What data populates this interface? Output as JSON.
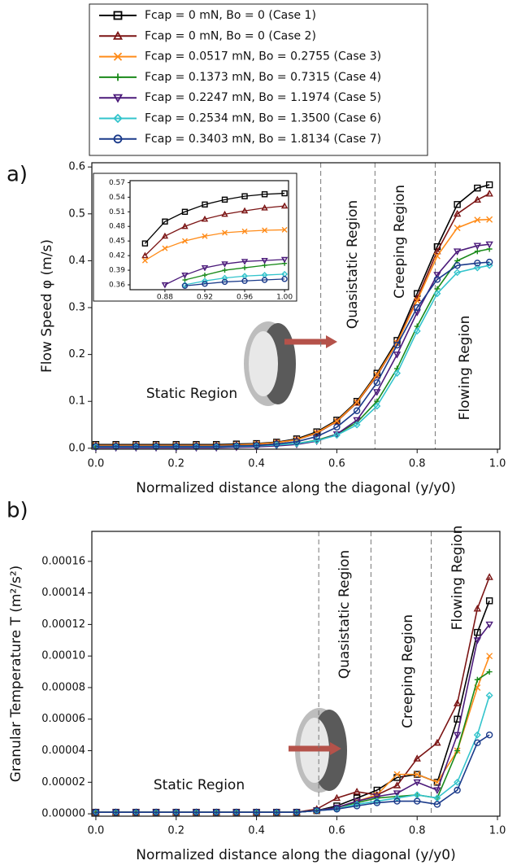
{
  "chart_data": [
    {
      "type": "line",
      "panel_label": "a)",
      "xlabel": "Normalized distance along the diagonal (y/y0)",
      "ylabel": "Flow Speed φ (m/s)",
      "xlim": [
        -0.01,
        1.006
      ],
      "ylim": [
        -0.002,
        0.609
      ],
      "xticks": [
        {
          "value": 0,
          "label": "0.0"
        },
        0.2,
        0.4,
        0.6,
        0.8,
        {
          "value": 1,
          "label": "1.0"
        }
      ],
      "yticks": [
        {
          "value": 0,
          "label": "0.0"
        },
        0.1,
        0.2,
        0.3,
        0.4,
        0.5,
        0.6
      ],
      "vlines": [
        0.56,
        0.695,
        0.845
      ],
      "annotations": [
        "Quasistatic Region",
        "Creeping Region",
        "Flowing Region",
        "Static Region"
      ],
      "x": [
        0,
        0.05,
        0.1,
        0.15,
        0.2,
        0.25,
        0.3,
        0.35,
        0.4,
        0.45,
        0.5,
        0.55,
        0.6,
        0.65,
        0.7,
        0.75,
        0.8,
        0.85,
        0.9,
        0.95,
        0.98
      ],
      "series": [
        {
          "name": "Fcap = 0 mN, Bo = 0  (Case 1)",
          "color": "#000000",
          "marker": "square",
          "values": [
            0.008,
            0.008,
            0.008,
            0.008,
            0.008,
            0.008,
            0.008,
            0.009,
            0.01,
            0.013,
            0.02,
            0.035,
            0.06,
            0.1,
            0.16,
            0.23,
            0.33,
            0.43,
            0.52,
            0.555,
            0.562
          ]
        },
        {
          "name": "Fcap = 0 mN, Bo = 0  (Case 2)",
          "color": "#7b1414",
          "marker": "triangle",
          "values": [
            0.006,
            0.006,
            0.006,
            0.006,
            0.006,
            0.006,
            0.006,
            0.007,
            0.008,
            0.012,
            0.018,
            0.032,
            0.057,
            0.097,
            0.155,
            0.225,
            0.32,
            0.42,
            0.5,
            0.53,
            0.543
          ]
        },
        {
          "name": "Fcap = 0.0517 mN, Bo = 0.2755  (Case 3)",
          "color": "#ff8c1a",
          "marker": "x",
          "values": [
            0.006,
            0.006,
            0.006,
            0.006,
            0.006,
            0.006,
            0.006,
            0.007,
            0.009,
            0.012,
            0.018,
            0.033,
            0.058,
            0.098,
            0.157,
            0.225,
            0.315,
            0.41,
            0.47,
            0.487,
            0.488
          ]
        },
        {
          "name": "Fcap = 0.1373 mN, Bo = 0.7315 (Case 4)",
          "color": "#1a8a1a",
          "marker": "plus",
          "values": [
            0.003,
            0.003,
            0.003,
            0.003,
            0.003,
            0.003,
            0.003,
            0.004,
            0.005,
            0.007,
            0.01,
            0.017,
            0.03,
            0.055,
            0.1,
            0.17,
            0.26,
            0.34,
            0.4,
            0.42,
            0.425
          ]
        },
        {
          "name": "Fcap = 0.2247 mN, Bo = 1.1974 (Case 5)",
          "color": "#4b1a7a",
          "marker": "tri-down",
          "values": [
            0.001,
            0.001,
            0.001,
            0.001,
            0.001,
            0.001,
            0.001,
            0.002,
            0.003,
            0.005,
            0.008,
            0.015,
            0.03,
            0.06,
            0.12,
            0.2,
            0.29,
            0.37,
            0.42,
            0.432,
            0.435
          ]
        },
        {
          "name": "Fcap = 0.2534 mN, Bo = 1.3500 (Case 6)",
          "color": "#33c4cc",
          "marker": "diamond",
          "values": [
            0.003,
            0.003,
            0.003,
            0.003,
            0.003,
            0.003,
            0.003,
            0.004,
            0.005,
            0.007,
            0.01,
            0.016,
            0.028,
            0.05,
            0.09,
            0.16,
            0.25,
            0.33,
            0.375,
            0.385,
            0.39
          ]
        },
        {
          "name": "Fcap = 0.3403 mN, Bo = 1.8134 (Case 7)",
          "color": "#1a3a8a",
          "marker": "circle",
          "values": [
            0.004,
            0.004,
            0.004,
            0.004,
            0.004,
            0.004,
            0.004,
            0.005,
            0.006,
            0.009,
            0.014,
            0.025,
            0.045,
            0.08,
            0.14,
            0.22,
            0.3,
            0.36,
            0.39,
            0.395,
            0.397
          ]
        }
      ]
    },
    {
      "type": "line",
      "xlim": [
        0.845,
        1.004
      ],
      "ylim": [
        0.35,
        0.574
      ],
      "xticks": [
        0.88,
        0.92,
        0.96,
        {
          "value": 1,
          "label": "1.00"
        }
      ],
      "yticks": [
        0.36,
        0.39,
        0.42,
        0.45,
        0.48,
        0.51,
        0.54,
        0.57
      ],
      "x": [
        0.86,
        0.88,
        0.9,
        0.92,
        0.94,
        0.96,
        0.98,
        1.0
      ],
      "series": [
        {
          "color": "#000000",
          "marker": "square",
          "values": [
            0.445,
            0.49,
            0.51,
            0.525,
            0.535,
            0.542,
            0.546,
            0.548
          ]
        },
        {
          "color": "#7b1414",
          "marker": "triangle",
          "values": [
            0.42,
            0.46,
            0.48,
            0.495,
            0.505,
            0.512,
            0.518,
            0.522
          ]
        },
        {
          "color": "#ff8c1a",
          "marker": "x",
          "values": [
            0.41,
            0.435,
            0.45,
            0.46,
            0.467,
            0.47,
            0.472,
            0.473
          ]
        },
        {
          "color": "#1a8a1a",
          "marker": "plus",
          "values": [
            null,
            null,
            0.37,
            0.38,
            0.39,
            0.395,
            0.4,
            0.404
          ]
        },
        {
          "color": "#4b1a7a",
          "marker": "tri-down",
          "values": [
            null,
            0.36,
            0.38,
            0.395,
            0.403,
            0.408,
            0.41,
            0.412
          ]
        },
        {
          "color": "#33c4cc",
          "marker": "diamond",
          "values": [
            null,
            null,
            0.36,
            0.368,
            0.374,
            0.378,
            0.38,
            0.382
          ]
        },
        {
          "color": "#1a3a8a",
          "marker": "circle",
          "values": [
            null,
            null,
            0.358,
            0.362,
            0.366,
            0.368,
            0.37,
            0.372
          ]
        }
      ]
    },
    {
      "type": "line",
      "panel_label": "b)",
      "xlabel": "Normalized distance along the diagonal (y/y0)",
      "ylabel": "Granular Temperature T (m²/s²)",
      "xlim": [
        -0.01,
        1.006
      ],
      "ylim": [
        -1.5e-06,
        0.000179
      ],
      "xticks": [
        {
          "value": 0,
          "label": "0.0"
        },
        0.2,
        0.4,
        0.6,
        0.8,
        {
          "value": 1,
          "label": "1.0"
        }
      ],
      "yticks": [
        {
          "value": 0,
          "label": "0.00000"
        },
        {
          "value": 2e-05,
          "label": "0.00002"
        },
        {
          "value": 4e-05,
          "label": "0.00004"
        },
        {
          "value": 6e-05,
          "label": "0.00006"
        },
        {
          "value": 8e-05,
          "label": "0.00008"
        },
        {
          "value": 0.0001,
          "label": "0.00010"
        },
        {
          "value": 0.00012,
          "label": "0.00012"
        },
        {
          "value": 0.00014,
          "label": "0.00014"
        },
        {
          "value": 0.00016,
          "label": "0.00016"
        }
      ],
      "vlines": [
        0.555,
        0.685,
        0.835
      ],
      "annotations": [
        "Quasistatic Region",
        "Creeping Region",
        "Flowing Region",
        "Static Region"
      ],
      "x": [
        0,
        0.05,
        0.1,
        0.15,
        0.2,
        0.25,
        0.3,
        0.35,
        0.4,
        0.45,
        0.5,
        0.55,
        0.6,
        0.65,
        0.7,
        0.75,
        0.8,
        0.85,
        0.9,
        0.95,
        0.98
      ],
      "series": [
        {
          "color": "#000000",
          "marker": "square",
          "values": [
            1e-06,
            1e-06,
            1e-06,
            1e-06,
            1e-06,
            1e-06,
            1e-06,
            1e-06,
            1e-06,
            1e-06,
            1e-06,
            2e-06,
            5e-06,
            1e-05,
            1.5e-05,
            2.3e-05,
            2.5e-05,
            2e-05,
            6e-05,
            0.000115,
            0.000135
          ]
        },
        {
          "color": "#7b1414",
          "marker": "triangle",
          "values": [
            1e-06,
            1e-06,
            1e-06,
            1e-06,
            1e-06,
            1e-06,
            1e-06,
            1e-06,
            1e-06,
            1e-06,
            1e-06,
            3e-06,
            1e-05,
            1.4e-05,
            1.2e-05,
            1.8e-05,
            3.5e-05,
            4.5e-05,
            7e-05,
            0.00013,
            0.00015
          ]
        },
        {
          "color": "#ff8c1a",
          "marker": "x",
          "values": [
            1e-06,
            1e-06,
            1e-06,
            1e-06,
            1e-06,
            1e-06,
            1e-06,
            1e-06,
            1e-06,
            1e-06,
            1e-06,
            2e-06,
            4e-06,
            8e-06,
            1.2e-05,
            2.5e-05,
            2.5e-05,
            2e-05,
            4e-05,
            8e-05,
            0.0001
          ]
        },
        {
          "color": "#1a8a1a",
          "marker": "plus",
          "values": [
            1e-06,
            1e-06,
            1e-06,
            1e-06,
            1e-06,
            1e-06,
            1e-06,
            1e-06,
            1e-06,
            1e-06,
            1e-06,
            2e-06,
            4e-06,
            7e-06,
            1e-05,
            1.1e-05,
            1.2e-05,
            1e-05,
            4e-05,
            8.5e-05,
            9e-05
          ]
        },
        {
          "color": "#4b1a7a",
          "marker": "tri-down",
          "values": [
            1e-06,
            1e-06,
            1e-06,
            1e-06,
            1e-06,
            1e-06,
            1e-06,
            1e-06,
            1e-06,
            1e-06,
            1e-06,
            2e-06,
            4e-06,
            8e-06,
            1.1e-05,
            1.3e-05,
            2e-05,
            1.5e-05,
            5e-05,
            0.00011,
            0.00012
          ]
        },
        {
          "color": "#33c4cc",
          "marker": "diamond",
          "values": [
            1e-06,
            1e-06,
            1e-06,
            1e-06,
            1e-06,
            1e-06,
            1e-06,
            1e-06,
            1e-06,
            1e-06,
            1e-06,
            2e-06,
            3e-06,
            6e-06,
            8e-06,
            1e-05,
            1.2e-05,
            1e-05,
            2e-05,
            5e-05,
            7.5e-05
          ]
        },
        {
          "color": "#1a3a8a",
          "marker": "circle",
          "values": [
            1e-06,
            1e-06,
            1e-06,
            1e-06,
            1e-06,
            1e-06,
            1e-06,
            1e-06,
            1e-06,
            1e-06,
            1e-06,
            2e-06,
            3e-06,
            5e-06,
            7e-06,
            8e-06,
            8e-06,
            6e-06,
            1.5e-05,
            4.5e-05,
            5e-05
          ]
        }
      ]
    }
  ]
}
